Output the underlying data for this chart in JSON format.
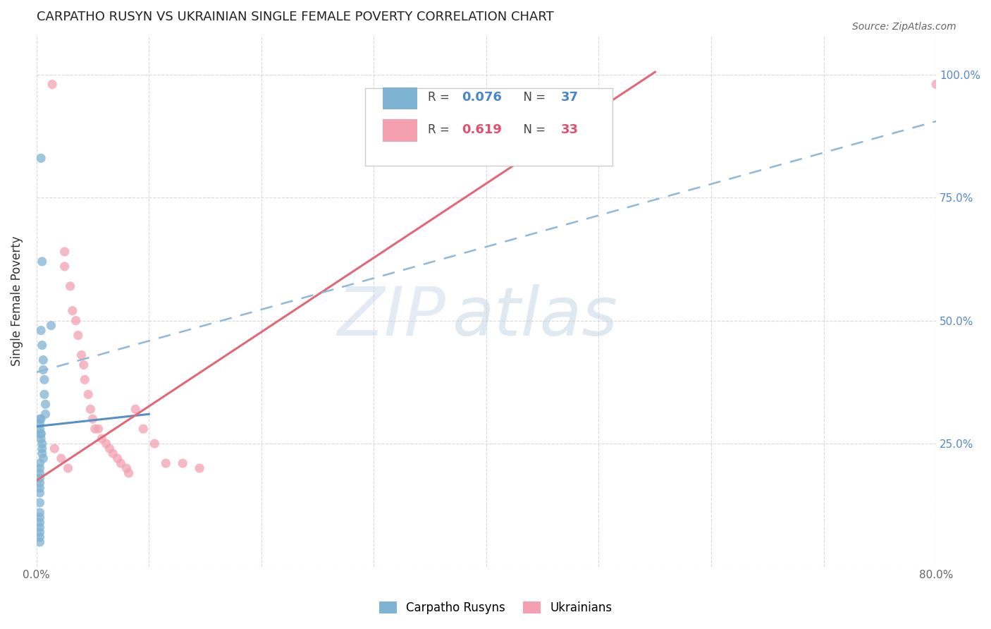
{
  "title": "CARPATHO RUSYN VS UKRAINIAN SINGLE FEMALE POVERTY CORRELATION CHART",
  "source": "Source: ZipAtlas.com",
  "ylabel": "Single Female Poverty",
  "xlim": [
    0.0,
    0.8
  ],
  "ylim": [
    0.0,
    1.08
  ],
  "watermark_zip": "ZIP",
  "watermark_atlas": "atlas",
  "x_tick_vals": [
    0.0,
    0.1,
    0.2,
    0.3,
    0.4,
    0.5,
    0.6,
    0.7,
    0.8
  ],
  "x_tick_labels": [
    "0.0%",
    "",
    "",
    "",
    "",
    "",
    "",
    "",
    "80.0%"
  ],
  "y_tick_vals": [
    0.0,
    0.25,
    0.5,
    0.75,
    1.0
  ],
  "y_tick_labels_right": [
    "",
    "25.0%",
    "50.0%",
    "75.0%",
    "100.0%"
  ],
  "background_color": "#ffffff",
  "grid_color": "#d0d0d0",
  "blue_color": "#7fb3d3",
  "pink_color": "#f4a0b0",
  "blue_line_color": "#5590c8",
  "pink_line_color": "#e06878",
  "dashed_line_color": "#90b8d8",
  "scatter_size": 90,
  "blue_scatter_x": [
    0.004,
    0.004,
    0.005,
    0.005,
    0.006,
    0.006,
    0.007,
    0.007,
    0.008,
    0.008,
    0.003,
    0.003,
    0.003,
    0.004,
    0.004,
    0.004,
    0.005,
    0.005,
    0.005,
    0.006,
    0.003,
    0.003,
    0.003,
    0.003,
    0.003,
    0.003,
    0.003,
    0.003,
    0.003,
    0.003,
    0.003,
    0.003,
    0.003,
    0.004,
    0.013,
    0.003,
    0.003
  ],
  "blue_scatter_y": [
    0.83,
    0.48,
    0.45,
    0.62,
    0.42,
    0.4,
    0.38,
    0.35,
    0.33,
    0.31,
    0.3,
    0.29,
    0.28,
    0.27,
    0.27,
    0.26,
    0.25,
    0.24,
    0.23,
    0.22,
    0.21,
    0.2,
    0.19,
    0.18,
    0.17,
    0.16,
    0.15,
    0.13,
    0.11,
    0.1,
    0.09,
    0.08,
    0.07,
    0.3,
    0.49,
    0.06,
    0.05
  ],
  "pink_scatter_x": [
    0.014,
    0.8,
    0.025,
    0.025,
    0.03,
    0.032,
    0.035,
    0.037,
    0.04,
    0.042,
    0.043,
    0.046,
    0.048,
    0.05,
    0.052,
    0.055,
    0.058,
    0.062,
    0.065,
    0.068,
    0.072,
    0.075,
    0.08,
    0.082,
    0.088,
    0.095,
    0.105,
    0.115,
    0.13,
    0.145,
    0.016,
    0.022,
    0.028
  ],
  "pink_scatter_y": [
    0.98,
    0.98,
    0.64,
    0.61,
    0.57,
    0.52,
    0.5,
    0.47,
    0.43,
    0.41,
    0.38,
    0.35,
    0.32,
    0.3,
    0.28,
    0.28,
    0.26,
    0.25,
    0.24,
    0.23,
    0.22,
    0.21,
    0.2,
    0.19,
    0.32,
    0.28,
    0.25,
    0.21,
    0.21,
    0.2,
    0.24,
    0.22,
    0.2
  ],
  "blue_line_x": [
    0.0,
    0.1
  ],
  "blue_line_y": [
    0.285,
    0.31
  ],
  "pink_line_x": [
    0.0,
    0.55
  ],
  "pink_line_y": [
    0.175,
    1.005
  ],
  "dashed_line_x": [
    0.0,
    0.8
  ],
  "dashed_line_y": [
    0.395,
    0.905
  ],
  "legend_R1": "0.076",
  "legend_N1": "37",
  "legend_R2": "0.619",
  "legend_N2": "33",
  "legend_label1": "Carpatho Rusyns",
  "legend_label2": "Ukrainians"
}
